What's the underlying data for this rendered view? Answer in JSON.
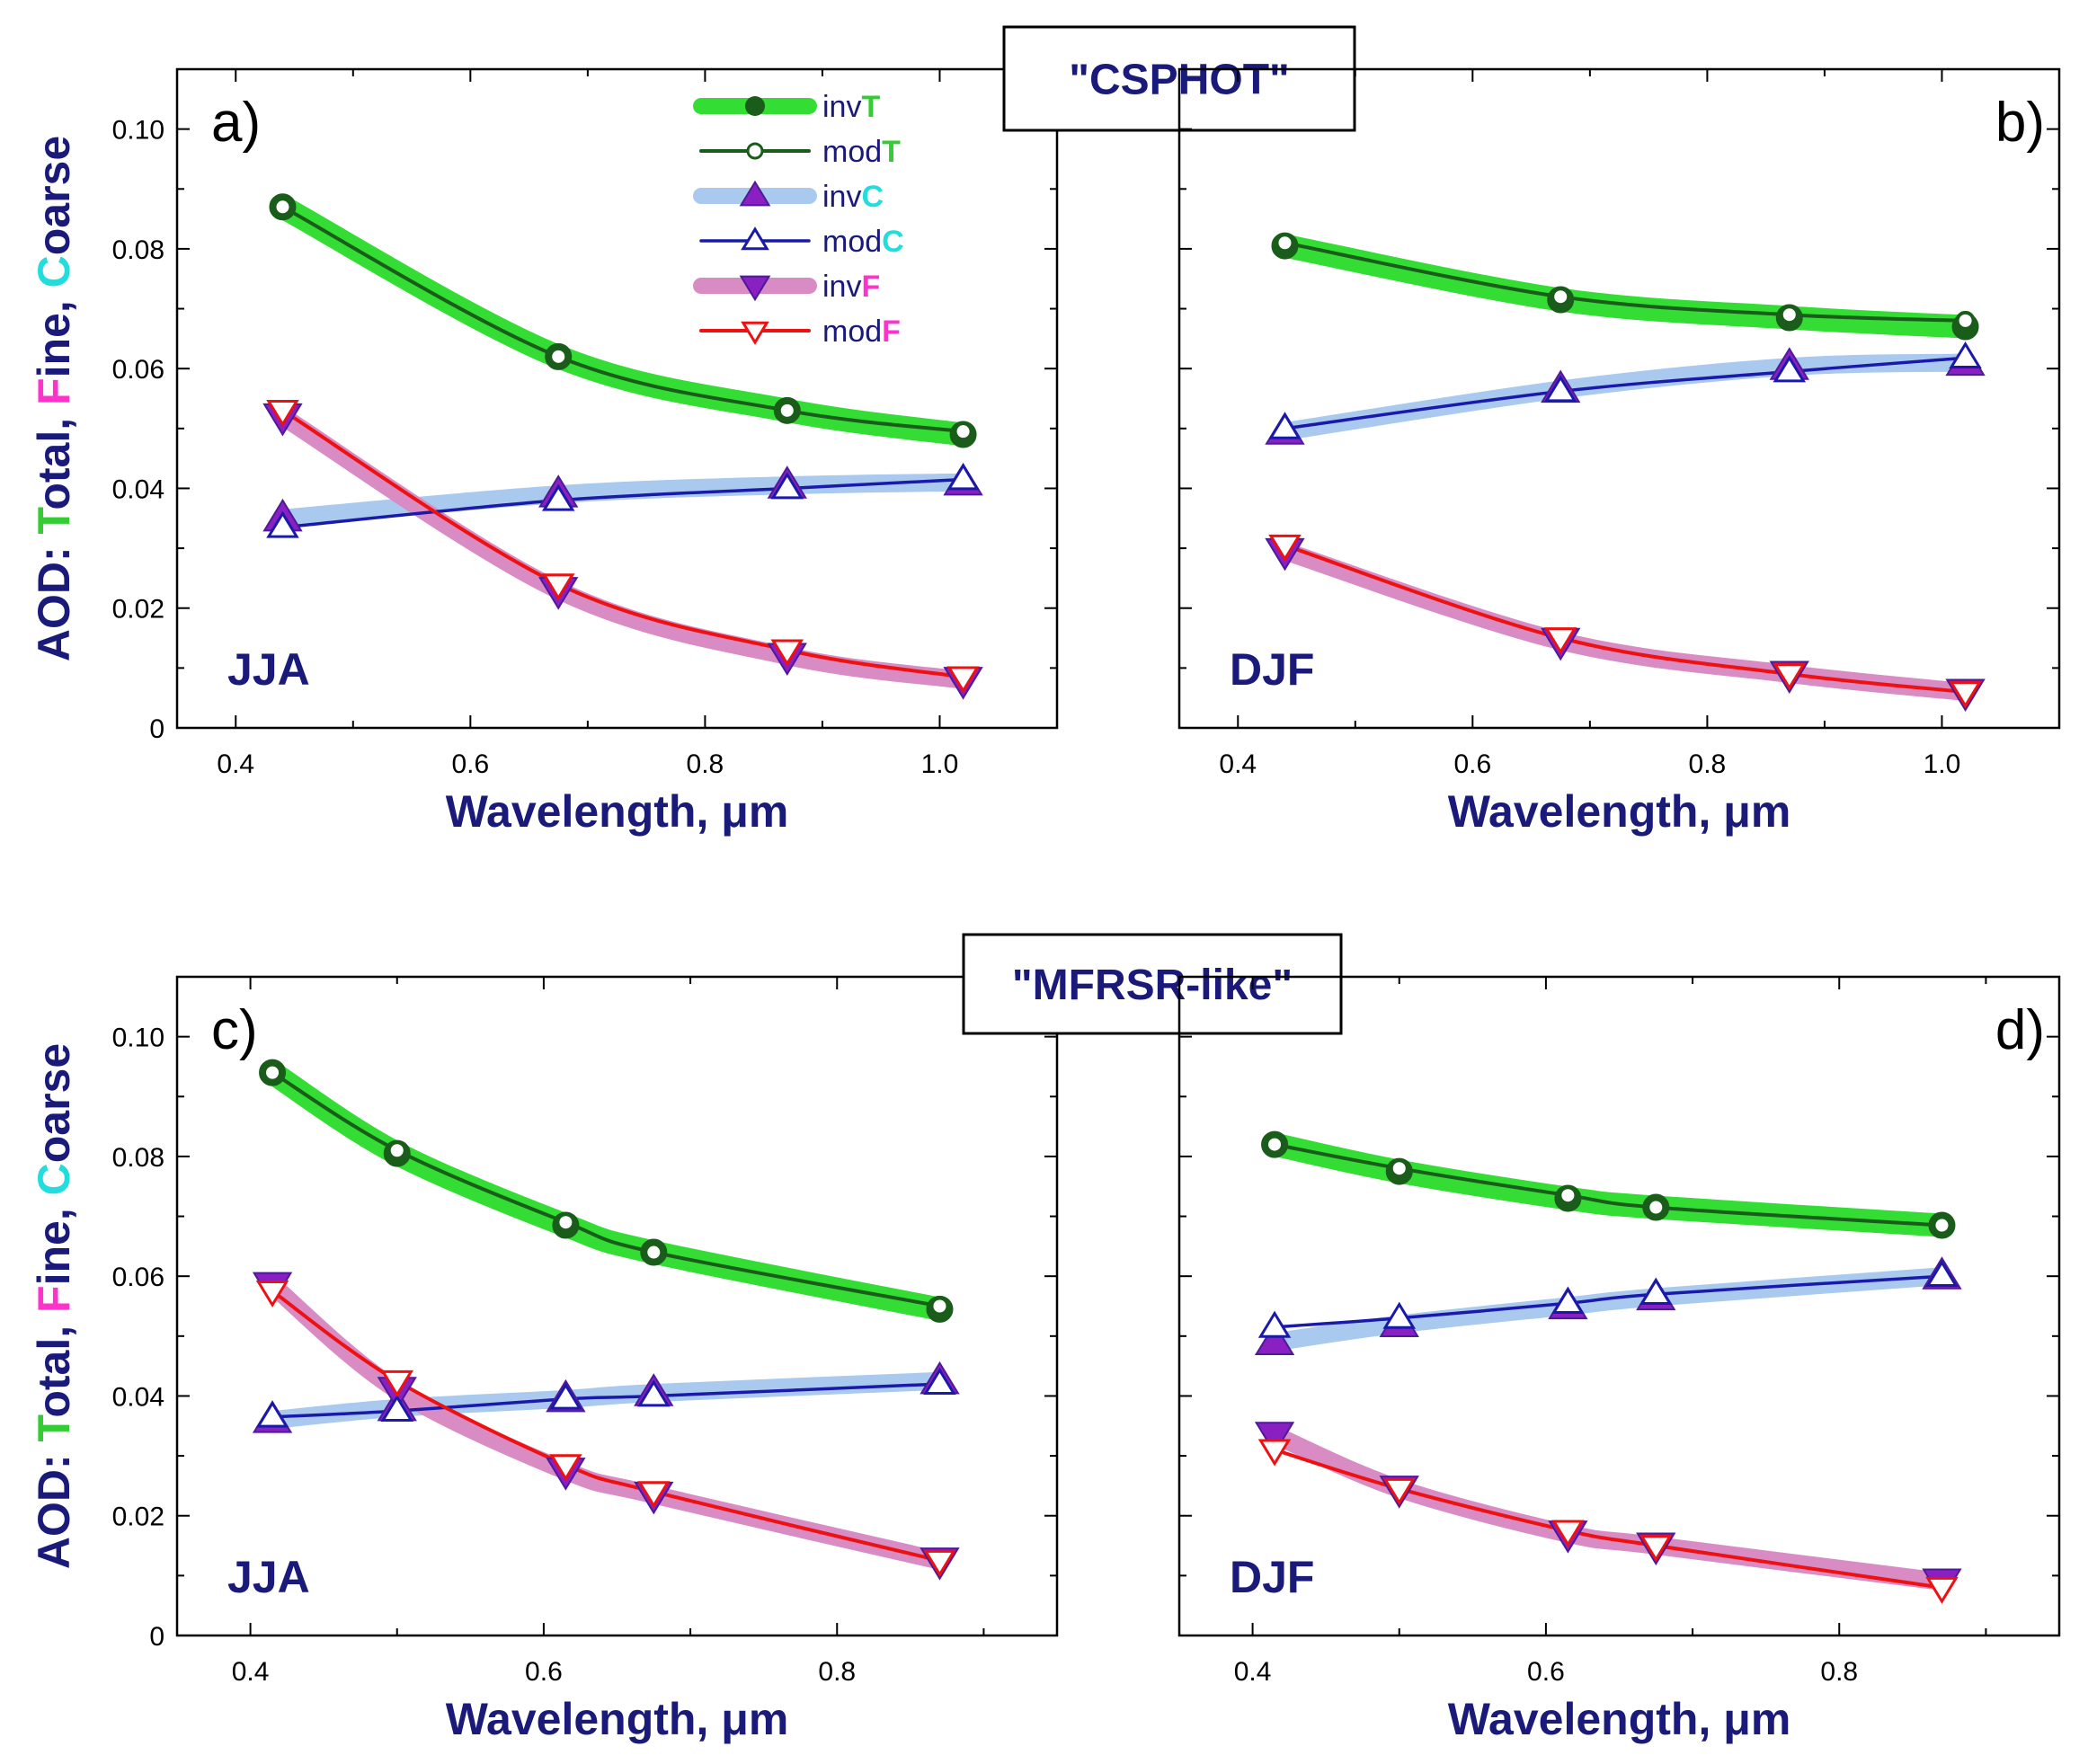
{
  "figure": {
    "legend": {
      "entries": [
        {
          "prefix": "inv",
          "suffix": "T",
          "suffix_color": "#33cc33",
          "key": "invT"
        },
        {
          "prefix": "mod",
          "suffix": "T",
          "suffix_color": "#33cc33",
          "key": "modT"
        },
        {
          "prefix": "inv",
          "suffix": "C",
          "suffix_color": "#22dddd",
          "key": "invC"
        },
        {
          "prefix": "mod",
          "suffix": "C",
          "suffix_color": "#22dddd",
          "key": "modC"
        },
        {
          "prefix": "inv",
          "suffix": "F",
          "suffix_color": "#ff33cc",
          "key": "invF"
        },
        {
          "prefix": "mod",
          "suffix": "F",
          "suffix_color": "#ff33cc",
          "key": "modF"
        }
      ]
    },
    "ylabel_parts": [
      {
        "text": "AOD: ",
        "color": "#1a1a7a"
      },
      {
        "text": "T",
        "color": "#33cc33"
      },
      {
        "text": "otal, ",
        "color": "#1a1a7a"
      },
      {
        "text": "F",
        "color": "#ff33cc"
      },
      {
        "text": "ine, ",
        "color": "#1a1a7a"
      },
      {
        "text": "C",
        "color": "#22dddd"
      },
      {
        "text": "oarse",
        "color": "#1a1a7a"
      }
    ],
    "colors": {
      "axis_text": "#1a1a7a",
      "invT_line": "#33dd33",
      "modT_line": "#1a5c1a",
      "invC_line": "#a9c9ee",
      "modC_line": "#1a1aaa",
      "invF_line": "#d98bc4",
      "modF_line": "#ee1111",
      "triangle_fill": "#8a1fc2",
      "triangle_stroke": "#4d1a99",
      "circle_stroke": "#1a5c1a"
    }
  },
  "chart_data": [
    {
      "type": "line",
      "panel_label": "a)",
      "season_label": "JJA",
      "group_title": "\"CSPHOT\"",
      "xlabel": "Wavelength, μm",
      "ylabel": "AOD: Total, Fine, Coarse",
      "xlim": [
        0.35,
        1.1
      ],
      "ylim": [
        0,
        0.11
      ],
      "xticks": [
        "0.4",
        "0.6",
        "0.8",
        "1.0"
      ],
      "yticks": [
        "0",
        "0.02",
        "0.04",
        "0.06",
        "0.08",
        "0.10"
      ],
      "x": [
        0.44,
        0.675,
        0.87,
        1.02
      ],
      "series": [
        {
          "name": "invT",
          "values": [
            0.087,
            0.062,
            0.053,
            0.049
          ]
        },
        {
          "name": "modT",
          "values": [
            0.087,
            0.062,
            0.053,
            0.0495
          ]
        },
        {
          "name": "invC",
          "values": [
            0.035,
            0.039,
            0.0405,
            0.041
          ]
        },
        {
          "name": "modC",
          "values": [
            0.0335,
            0.038,
            0.04,
            0.0415
          ]
        },
        {
          "name": "invF",
          "values": [
            0.052,
            0.023,
            0.012,
            0.008
          ]
        },
        {
          "name": "modF",
          "values": [
            0.053,
            0.024,
            0.013,
            0.0085
          ]
        }
      ]
    },
    {
      "type": "line",
      "panel_label": "b)",
      "season_label": "DJF",
      "xlabel": "Wavelength, μm",
      "xlim": [
        0.35,
        1.1
      ],
      "ylim": [
        0,
        0.11
      ],
      "xticks": [
        "0.4",
        "0.6",
        "0.8",
        "1.0"
      ],
      "x": [
        0.44,
        0.675,
        0.87,
        1.02
      ],
      "series": [
        {
          "name": "invT",
          "values": [
            0.0805,
            0.0715,
            0.0685,
            0.067
          ]
        },
        {
          "name": "modT",
          "values": [
            0.081,
            0.072,
            0.069,
            0.068
          ]
        },
        {
          "name": "invC",
          "values": [
            0.0495,
            0.0565,
            0.0603,
            0.061
          ]
        },
        {
          "name": "modC",
          "values": [
            0.05,
            0.0562,
            0.0595,
            0.0618
          ]
        },
        {
          "name": "invF",
          "values": [
            0.0295,
            0.0145,
            0.009,
            0.006
          ]
        },
        {
          "name": "modF",
          "values": [
            0.0305,
            0.015,
            0.009,
            0.006
          ]
        }
      ]
    },
    {
      "type": "line",
      "panel_label": "c)",
      "season_label": "JJA",
      "group_title": "\"MFRSR-like\"",
      "xlabel": "Wavelength, μm",
      "ylabel": "AOD: Total, Fine, Coarse",
      "xlim": [
        0.35,
        0.95
      ],
      "ylim": [
        0,
        0.11
      ],
      "xticks": [
        "0.4",
        "0.6",
        "0.8"
      ],
      "yticks": [
        "0",
        "0.02",
        "0.04",
        "0.06",
        "0.08",
        "0.10"
      ],
      "x": [
        0.415,
        0.5,
        0.615,
        0.675,
        0.87
      ],
      "series": [
        {
          "name": "invT",
          "values": [
            0.094,
            0.0805,
            0.0685,
            0.064,
            0.0545
          ]
        },
        {
          "name": "modT",
          "values": [
            0.094,
            0.081,
            0.069,
            0.064,
            0.055
          ]
        },
        {
          "name": "invC",
          "values": [
            0.036,
            0.038,
            0.0395,
            0.0405,
            0.0425
          ]
        },
        {
          "name": "modC",
          "values": [
            0.0365,
            0.0375,
            0.0395,
            0.04,
            0.042
          ]
        },
        {
          "name": "invF",
          "values": [
            0.0585,
            0.041,
            0.0275,
            0.0235,
            0.0125
          ]
        },
        {
          "name": "modF",
          "values": [
            0.0575,
            0.0425,
            0.0285,
            0.024,
            0.0125
          ]
        }
      ]
    },
    {
      "type": "line",
      "panel_label": "d)",
      "season_label": "DJF",
      "xlabel": "Wavelength, μm",
      "xlim": [
        0.35,
        0.95
      ],
      "ylim": [
        0,
        0.11
      ],
      "xticks": [
        "0.4",
        "0.6",
        "0.8"
      ],
      "x": [
        0.415,
        0.5,
        0.615,
        0.675,
        0.87
      ],
      "series": [
        {
          "name": "invT",
          "values": [
            0.082,
            0.0775,
            0.073,
            0.0715,
            0.0685
          ]
        },
        {
          "name": "modT",
          "values": [
            0.082,
            0.078,
            0.0735,
            0.0715,
            0.0685
          ]
        },
        {
          "name": "invC",
          "values": [
            0.049,
            0.052,
            0.055,
            0.0565,
            0.06
          ]
        },
        {
          "name": "modC",
          "values": [
            0.0515,
            0.053,
            0.0555,
            0.057,
            0.06
          ]
        },
        {
          "name": "invF",
          "values": [
            0.0335,
            0.0245,
            0.017,
            0.015,
            0.009
          ]
        },
        {
          "name": "modF",
          "values": [
            0.031,
            0.0245,
            0.0175,
            0.015,
            0.008
          ]
        }
      ]
    }
  ]
}
